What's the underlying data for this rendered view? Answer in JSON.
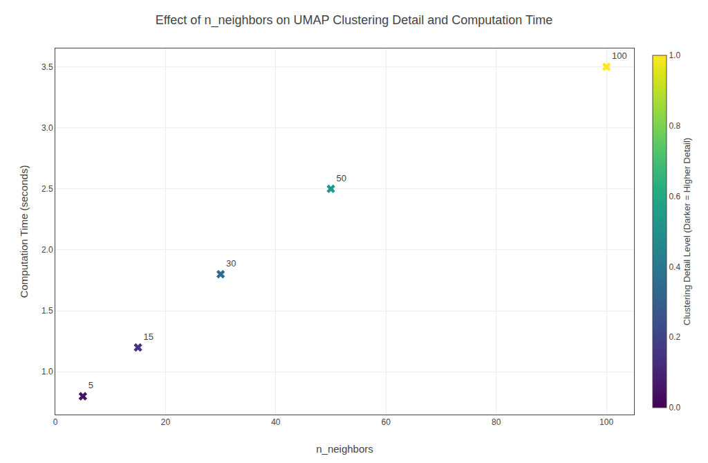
{
  "chart_data": {
    "type": "scatter",
    "title": "Effect of n_neighbors on UMAP Clustering Detail and Computation Time",
    "xlabel": "n_neighbors",
    "ylabel": "Computation Time (seconds)",
    "x": [
      5,
      15,
      30,
      50,
      100
    ],
    "values": [
      0.8,
      1.2,
      1.8,
      2.5,
      3.5
    ],
    "annotations": [
      "5",
      "15",
      "30",
      "50",
      "100"
    ],
    "color_values": [
      0.05,
      0.15,
      0.35,
      0.55,
      1.0
    ],
    "color": "viridis",
    "marker": "x",
    "colorbar_label": "Clustering Detail Level (Darker = Higher Detail)",
    "colorbar_range": [
      0.0,
      1.0
    ],
    "colorbar_ticks": [
      {
        "value": 0.0,
        "label": "0.0"
      },
      0.2,
      0.4,
      0.6,
      0.8,
      {
        "value": 1.0,
        "label": "1.0"
      }
    ],
    "xlim": [
      0,
      105
    ],
    "ylim": [
      0.65,
      3.65
    ],
    "xticks": [
      0,
      20,
      40,
      60,
      80,
      100
    ],
    "yticks": [
      {
        "value": 1.0,
        "label": "1.0"
      },
      1.5,
      {
        "value": 2.0,
        "label": "2.0"
      },
      2.5,
      {
        "value": 3.0,
        "label": "3.0"
      },
      3.5
    ],
    "grid": true
  }
}
